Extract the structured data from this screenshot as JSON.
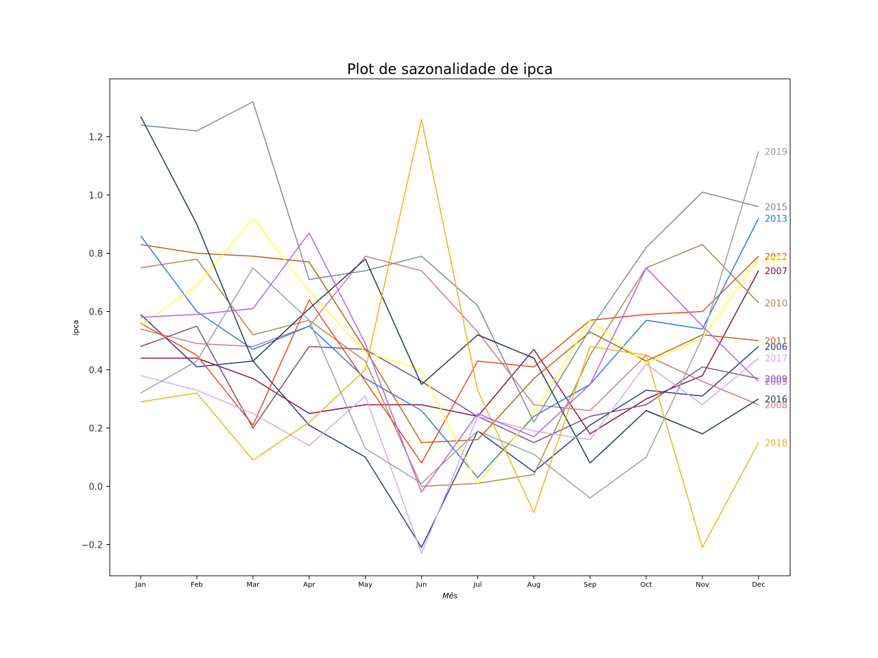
{
  "chart_data": {
    "type": "line",
    "title": "Plot de sazonalidade de ipca",
    "xlabel": "Mês",
    "ylabel": "ipca",
    "categories": [
      "Jan",
      "Feb",
      "Mar",
      "Apr",
      "May",
      "Jun",
      "Jul",
      "Aug",
      "Sep",
      "Oct",
      "Nov",
      "Dec"
    ],
    "ylim": [
      -0.31,
      1.4
    ],
    "yticks": [
      -0.2,
      0.0,
      0.2,
      0.4,
      0.6,
      0.8,
      1.0,
      1.2
    ],
    "ytick_labels": [
      "−0.2",
      "0.0",
      "0.2",
      "0.4",
      "0.6",
      "0.8",
      "1.0",
      "1.2"
    ],
    "grid": false,
    "legend": "end-of-line labels",
    "series": [
      {
        "name": "2006",
        "color": "#203a8f",
        "values": [
          0.59,
          0.41,
          0.43,
          0.21,
          0.1,
          -0.21,
          0.19,
          0.05,
          0.21,
          0.33,
          0.31,
          0.48
        ]
      },
      {
        "name": "2007",
        "color": "#8c0e4a",
        "values": [
          0.44,
          0.44,
          0.37,
          0.25,
          0.28,
          0.28,
          0.24,
          0.47,
          0.18,
          0.3,
          0.38,
          0.74
        ]
      },
      {
        "name": "2008",
        "color": "#c97a8a",
        "values": [
          0.54,
          0.49,
          0.48,
          0.55,
          0.79,
          0.74,
          0.53,
          0.28,
          0.26,
          0.45,
          0.36,
          0.28
        ]
      },
      {
        "name": "2009",
        "color": "#7a4e7a",
        "values": [
          0.48,
          0.55,
          0.2,
          0.48,
          0.47,
          0.36,
          0.24,
          0.15,
          0.24,
          0.28,
          0.41,
          0.37
        ]
      },
      {
        "name": "2010",
        "color": "#b0874a",
        "values": [
          0.75,
          0.78,
          0.52,
          0.57,
          0.43,
          0.0,
          0.01,
          0.04,
          0.45,
          0.75,
          0.83,
          0.63
        ]
      },
      {
        "name": "2011",
        "color": "#c15f0a",
        "values": [
          0.83,
          0.8,
          0.79,
          0.77,
          0.47,
          0.15,
          0.16,
          0.37,
          0.53,
          0.43,
          0.52,
          0.5
        ]
      },
      {
        "name": "2012",
        "color": "#f0450f",
        "values": [
          0.56,
          0.45,
          0.21,
          0.64,
          0.36,
          0.08,
          0.43,
          0.41,
          0.57,
          0.59,
          0.6,
          0.79
        ]
      },
      {
        "name": "2013",
        "color": "#2a7ae6",
        "values": [
          0.86,
          0.6,
          0.47,
          0.55,
          0.37,
          0.26,
          0.03,
          0.24,
          0.35,
          0.57,
          0.54,
          0.92
        ]
      },
      {
        "name": "2014",
        "color": "#ffff33",
        "values": [
          0.55,
          0.69,
          0.92,
          0.67,
          0.46,
          0.4,
          0.01,
          0.25,
          0.57,
          0.42,
          0.51,
          0.78
        ]
      },
      {
        "name": "2015",
        "color": "#7a8c9a",
        "values": [
          1.24,
          1.22,
          1.32,
          0.71,
          0.74,
          0.79,
          0.62,
          0.22,
          0.54,
          0.82,
          1.01,
          0.96
        ]
      },
      {
        "name": "2016",
        "color": "#1d3a4a",
        "values": [
          1.27,
          0.9,
          0.43,
          0.61,
          0.78,
          0.35,
          0.52,
          0.44,
          0.08,
          0.26,
          0.18,
          0.3
        ]
      },
      {
        "name": "2017",
        "color": "#d4a8f0",
        "values": [
          0.38,
          0.33,
          0.25,
          0.14,
          0.31,
          -0.23,
          0.24,
          0.19,
          0.16,
          0.42,
          0.28,
          0.44
        ]
      },
      {
        "name": "2018",
        "color": "#f5b114",
        "values": [
          0.29,
          0.32,
          0.09,
          0.22,
          0.4,
          1.26,
          0.33,
          -0.09,
          0.48,
          0.45,
          -0.21,
          0.15
        ]
      },
      {
        "name": "2019",
        "color": "#9aa29a",
        "values": [
          0.32,
          0.43,
          0.75,
          0.57,
          0.13,
          0.01,
          0.19,
          0.11,
          -0.04,
          0.1,
          0.51,
          1.15
        ]
      },
      {
        "name": "2005",
        "color": "#b85cf0",
        "values": [
          0.58,
          0.59,
          0.61,
          0.87,
          0.49,
          -0.02,
          0.25,
          0.17,
          0.35,
          0.75,
          0.55,
          0.36
        ]
      }
    ]
  }
}
